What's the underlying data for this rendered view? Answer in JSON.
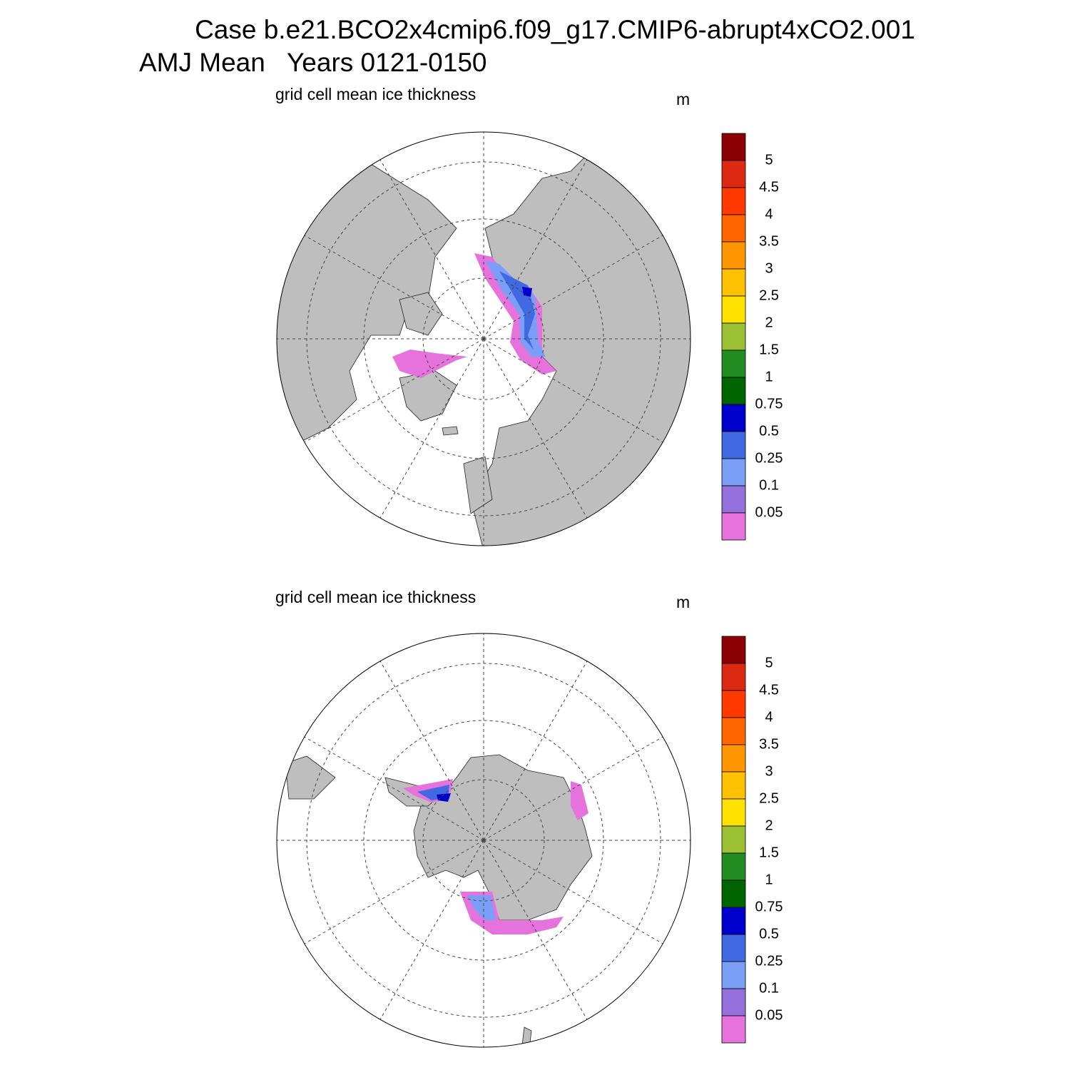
{
  "title": "Case b.e21.BCO2x4cmip6.f09_g17.CMIP6-abrupt4xCO2.001",
  "subtitle": "AMJ Mean   Years 0121-0150",
  "panels": [
    {
      "label": "grid cell mean ice thickness",
      "units": "m",
      "colorbar": {
        "levels": [
          "5",
          "4.5",
          "4",
          "3.5",
          "3",
          "2.5",
          "2",
          "1.5",
          "1",
          "0.75",
          "0.5",
          "0.25",
          "0.1",
          "0.05"
        ],
        "colors": [
          "#8b0000",
          "#dc2a12",
          "#ff3a00",
          "#ff6600",
          "#ff9500",
          "#ffc100",
          "#ffe100",
          "#9bc033",
          "#228b22",
          "#006400",
          "#0000cd",
          "#4169e1",
          "#7b9ef6",
          "#9370db",
          "#e672dc"
        ]
      }
    },
    {
      "label": "grid cell mean ice thickness",
      "units": "m",
      "colorbar": {
        "levels": [
          "5",
          "4.5",
          "4",
          "3.5",
          "3",
          "2.5",
          "2",
          "1.5",
          "1",
          "0.75",
          "0.5",
          "0.25",
          "0.1",
          "0.05"
        ],
        "colors": [
          "#8b0000",
          "#dc2a12",
          "#ff3a00",
          "#ff6600",
          "#ff9500",
          "#ffc100",
          "#ffe100",
          "#9bc033",
          "#228b22",
          "#006400",
          "#0000cd",
          "#4169e1",
          "#7b9ef6",
          "#9370db",
          "#e672dc"
        ]
      }
    }
  ]
}
